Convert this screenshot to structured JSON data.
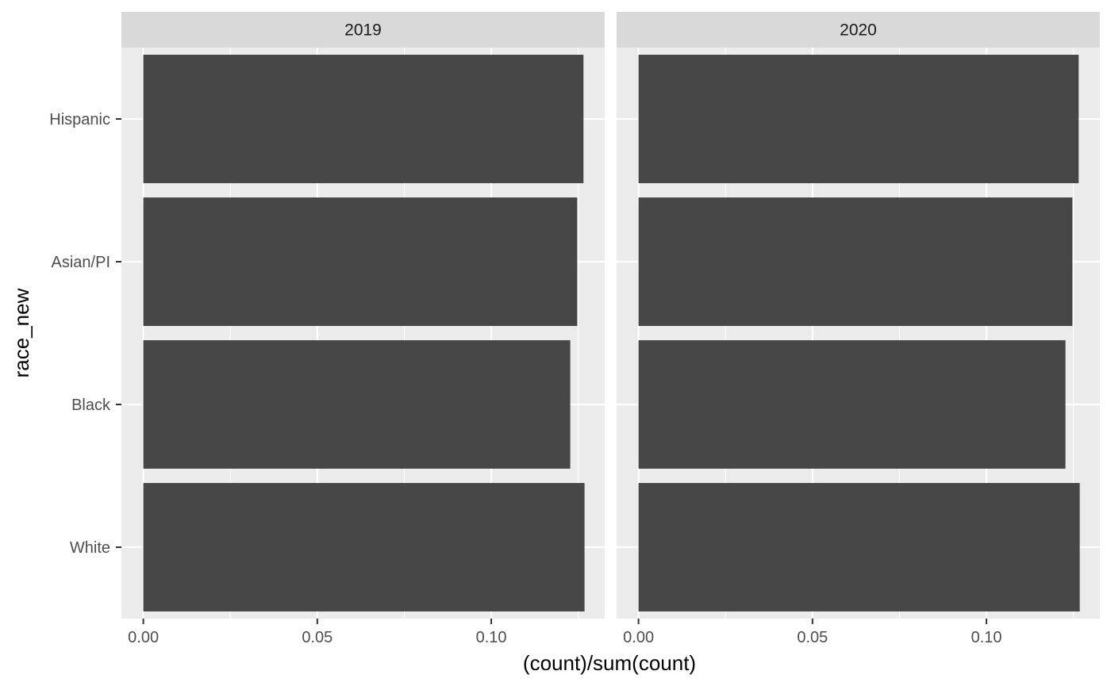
{
  "chart_data": {
    "type": "bar",
    "orientation": "horizontal",
    "facet_variable": "year",
    "categories": [
      "Hispanic",
      "Asian/PI",
      "Black",
      "White"
    ],
    "xlabel": "(count)/sum(count)",
    "ylabel": "race_new",
    "xlim": [
      -0.0063,
      0.1326
    ],
    "x_ticks": [
      0.0,
      0.05,
      0.1
    ],
    "x_tick_labels": [
      "0.00",
      "0.05",
      "0.10"
    ],
    "grid": true,
    "colors": {
      "bar": "#474747",
      "panel": "#ebebeb",
      "strip": "#d9d9d9",
      "grid": "#ffffff"
    },
    "facets": [
      {
        "label": "2019",
        "values": [
          0.1265,
          0.1247,
          0.1227,
          0.1268
        ]
      },
      {
        "label": "2020",
        "values": [
          0.1265,
          0.1247,
          0.1227,
          0.1268
        ]
      }
    ]
  }
}
